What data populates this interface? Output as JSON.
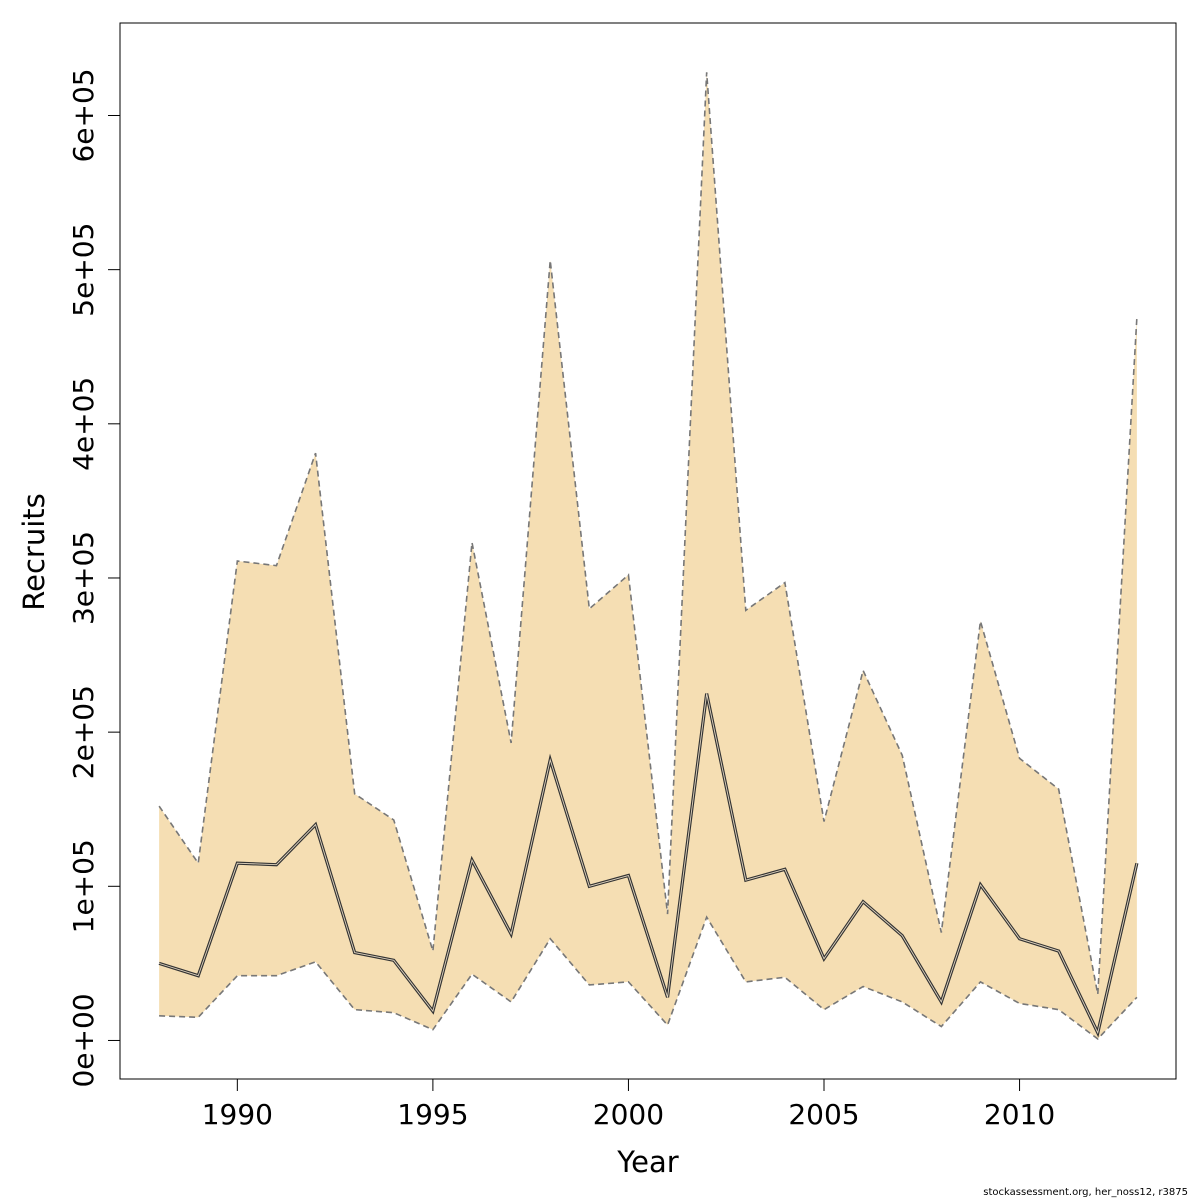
{
  "chart_data": {
    "type": "area",
    "xlabel": "Year",
    "ylabel": "Recruits",
    "xlim": [
      1987,
      2014
    ],
    "ylim": [
      -25000,
      660000
    ],
    "x_ticks": [
      1990,
      1995,
      2000,
      2005,
      2010
    ],
    "x_tick_labels": [
      "1990",
      "1995",
      "2000",
      "2005",
      "2010"
    ],
    "y_ticks": [
      0,
      100000,
      200000,
      300000,
      400000,
      500000,
      600000
    ],
    "y_tick_labels": [
      "0e+00",
      "1e+05",
      "2e+05",
      "3e+05",
      "4e+05",
      "5e+05",
      "6e+05"
    ],
    "grid": false,
    "colors": {
      "band_fill": "#f5deb3",
      "band_edge": "#777777",
      "line": "#333333"
    },
    "x": [
      1988,
      1989,
      1990,
      1991,
      1992,
      1993,
      1994,
      1995,
      1996,
      1997,
      1998,
      1999,
      2000,
      2001,
      2002,
      2003,
      2004,
      2005,
      2006,
      2007,
      2008,
      2009,
      2010,
      2011,
      2012,
      2013
    ],
    "series": [
      {
        "role": "estimate",
        "values": [
          50000,
          42000,
          115000,
          114000,
          140000,
          57000,
          52000,
          19000,
          117000,
          69000,
          182000,
          100000,
          107000,
          28000,
          225000,
          104000,
          111000,
          53000,
          90000,
          68000,
          25000,
          101000,
          66000,
          58000,
          5000,
          115000
        ]
      },
      {
        "role": "lower",
        "values": [
          16000,
          15000,
          42000,
          42000,
          51000,
          20000,
          18000,
          7000,
          43000,
          25000,
          66000,
          36000,
          38000,
          10000,
          80000,
          38000,
          41000,
          20000,
          35000,
          25000,
          9000,
          38000,
          24000,
          20000,
          1000,
          28000
        ]
      },
      {
        "role": "upper",
        "values": [
          152000,
          115000,
          311000,
          308000,
          381000,
          160000,
          143000,
          58000,
          323000,
          193000,
          506000,
          280000,
          302000,
          82000,
          628000,
          279000,
          297000,
          142000,
          240000,
          185000,
          70000,
          272000,
          183000,
          163000,
          30000,
          469000
        ]
      }
    ]
  },
  "footer": {
    "credit": "stockassessment.org, her_noss12, r3875"
  }
}
